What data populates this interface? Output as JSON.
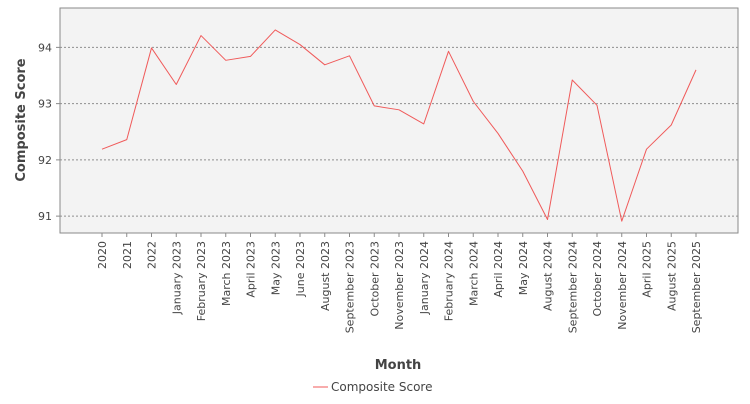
{
  "chart_data": {
    "type": "line",
    "xlabel": "Month",
    "ylabel": "Composite Score",
    "ylim": [
      90.7,
      94.7
    ],
    "yticks": [
      91,
      92,
      93,
      94
    ],
    "grid": true,
    "legend_position": "bottom",
    "categories": [
      "2020",
      "2021",
      "2022",
      "January 2023",
      "February 2023",
      "March 2023",
      "April 2023",
      "May 2023",
      "June 2023",
      "August 2023",
      "September 2023",
      "October 2023",
      "November 2023",
      "January 2024",
      "February 2024",
      "March 2024",
      "April 2024",
      "May 2024",
      "August 2024",
      "September 2024",
      "October 2024",
      "November 2024",
      "April 2025",
      "August 2025",
      "September 2025"
    ],
    "series": [
      {
        "name": "Composite Score",
        "color": "#f05a5a",
        "values": [
          92.19,
          92.36,
          93.99,
          93.34,
          94.21,
          93.77,
          93.84,
          94.31,
          94.05,
          93.69,
          93.85,
          92.96,
          92.89,
          92.64,
          93.93,
          93.04,
          92.47,
          91.8,
          90.94,
          93.42,
          92.97,
          90.91,
          92.19,
          92.62,
          93.6
        ]
      }
    ]
  }
}
